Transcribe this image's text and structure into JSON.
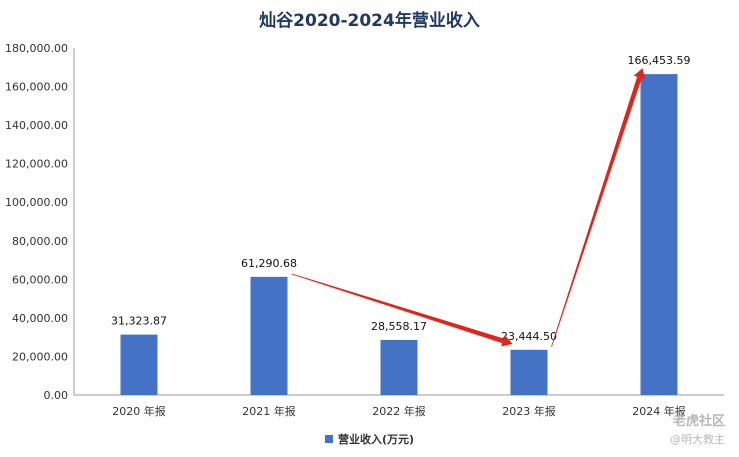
{
  "chart_data": {
    "type": "bar",
    "title": "灿谷2020-2024年营业收入",
    "categories": [
      "2020 年报",
      "2021 年报",
      "2022 年报",
      "2023 年报",
      "2024 年报"
    ],
    "series": [
      {
        "name": "营业收入(万元)",
        "values": [
          31323.87,
          61290.68,
          28558.17,
          23444.5,
          166453.59
        ]
      }
    ],
    "data_labels": [
      "31,323.87",
      "61,290.68",
      "28,558.17",
      "23,444.50",
      "166,453.59"
    ],
    "ylim": [
      0,
      180000
    ],
    "yticks": [
      0,
      20000,
      40000,
      60000,
      80000,
      100000,
      120000,
      140000,
      160000,
      180000
    ],
    "ytick_labels": [
      "0.00",
      "20,000.00",
      "40,000.00",
      "60,000.00",
      "80,000.00",
      "100,000.00",
      "120,000.00",
      "140,000.00",
      "160,000.00",
      "180,000.00"
    ],
    "grid": false,
    "legend_position": "bottom",
    "bar_color": "#4472c4",
    "arrow_color": "#e0251b",
    "annotations": [
      {
        "type": "arrow",
        "from_category": "2021 年报",
        "to_category": "2023 年报"
      },
      {
        "type": "arrow",
        "from_category": "2023 年报",
        "to_category": "2024 年报"
      }
    ]
  },
  "watermark": {
    "line1": "老虎社区",
    "line2": "@明大教主"
  }
}
